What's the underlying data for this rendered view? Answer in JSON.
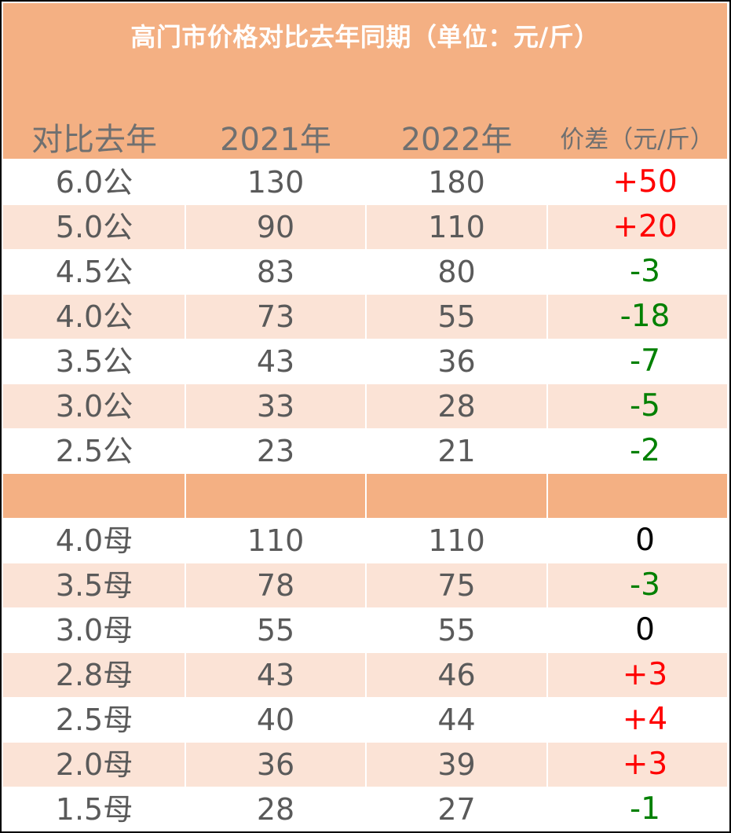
{
  "title": "高门市价格对比去年同期（单位：元/斤）",
  "headers": {
    "category": "对比去年",
    "y2021": "2021年",
    "y2022": "2022年",
    "diff": "价差（元/斤）"
  },
  "colors": {
    "header_bg": "#f4b083",
    "row_tint": "#fbe3d6",
    "positive": "#ff0000",
    "negative": "#008000",
    "zero": "#000000",
    "text": "#5a5a5a"
  },
  "male_rows": [
    {
      "size": "6.0公",
      "y2021": "130",
      "y2022": "180",
      "diff": "+50",
      "sign": "pos"
    },
    {
      "size": "5.0公",
      "y2021": "90",
      "y2022": "110",
      "diff": "+20",
      "sign": "pos"
    },
    {
      "size": "4.5公",
      "y2021": "83",
      "y2022": "80",
      "diff": "-3",
      "sign": "neg"
    },
    {
      "size": "4.0公",
      "y2021": "73",
      "y2022": "55",
      "diff": "-18",
      "sign": "neg"
    },
    {
      "size": "3.5公",
      "y2021": "43",
      "y2022": "36",
      "diff": "-7",
      "sign": "neg"
    },
    {
      "size": "3.0公",
      "y2021": "33",
      "y2022": "28",
      "diff": "-5",
      "sign": "neg"
    },
    {
      "size": "2.5公",
      "y2021": "23",
      "y2022": "21",
      "diff": "-2",
      "sign": "neg"
    }
  ],
  "female_rows": [
    {
      "size": "4.0母",
      "y2021": "110",
      "y2022": "110",
      "diff": "0",
      "sign": "zero"
    },
    {
      "size": "3.5母",
      "y2021": "78",
      "y2022": "75",
      "diff": "-3",
      "sign": "neg"
    },
    {
      "size": "3.0母",
      "y2021": "55",
      "y2022": "55",
      "diff": "0",
      "sign": "zero"
    },
    {
      "size": "2.8母",
      "y2021": "43",
      "y2022": "46",
      "diff": "+3",
      "sign": "pos"
    },
    {
      "size": "2.5母",
      "y2021": "40",
      "y2022": "44",
      "diff": "+4",
      "sign": "pos"
    },
    {
      "size": "2.0母",
      "y2021": "36",
      "y2022": "39",
      "diff": "+3",
      "sign": "pos"
    },
    {
      "size": "1.5母",
      "y2021": "28",
      "y2022": "27",
      "diff": "-1",
      "sign": "neg"
    }
  ]
}
